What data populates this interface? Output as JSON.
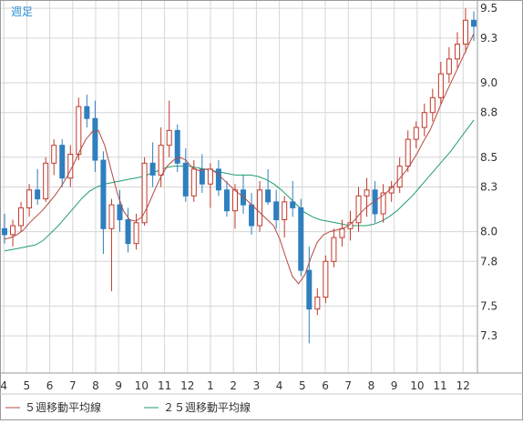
{
  "period_label": "週足",
  "chart_data": {
    "type": "candlestick",
    "ylim": [
      7.05,
      9.55
    ],
    "grid": true,
    "y_ticks": [
      7.3,
      7.5,
      7.8,
      8.0,
      8.3,
      8.5,
      8.8,
      9.0,
      9.3,
      9.5
    ],
    "y_tick_labels": [
      "7.3",
      "7.5",
      "7.8",
      "8.0",
      "8.3",
      "8.5",
      "8.8",
      "9.0",
      "9.3",
      "9.5"
    ],
    "x_tick_labels": [
      "4",
      "5",
      "6",
      "7",
      "8",
      "9",
      "10",
      "11",
      "12",
      "1",
      "2",
      "3",
      "4",
      "5",
      "6",
      "7",
      "8",
      "9",
      "10",
      "11",
      "12"
    ],
    "x_tick_index": [
      1,
      9,
      17,
      25,
      33,
      41,
      49,
      57,
      65,
      73,
      81,
      89,
      97,
      105,
      113,
      121,
      129,
      137,
      145,
      153,
      161
    ],
    "up_color": "#c0392b",
    "down_color": "#2f7fbf",
    "series": [
      {
        "name": "５週移動平均線",
        "color": "#b5483f",
        "values": [
          7.95,
          7.96,
          7.98,
          8.01,
          8.06,
          8.1,
          8.14,
          8.19,
          8.24,
          8.3,
          8.37,
          8.45,
          8.54,
          8.62,
          8.67,
          8.68,
          8.58,
          8.42,
          8.26,
          8.14,
          8.08,
          8.07,
          8.1,
          8.18,
          8.28,
          8.37,
          8.44,
          8.48,
          8.5,
          8.48,
          8.43,
          8.41,
          8.42,
          8.42,
          8.39,
          8.35,
          8.31,
          8.27,
          8.24,
          8.2,
          8.16,
          8.12,
          8.08,
          8.04,
          7.95,
          7.82,
          7.7,
          7.65,
          7.71,
          7.83,
          7.93,
          7.98,
          8.0,
          8.01,
          8.02,
          8.04,
          8.08,
          8.13,
          8.17,
          8.2,
          8.23,
          8.26,
          8.3,
          8.35,
          8.4,
          8.46,
          8.53,
          8.61,
          8.68,
          8.78,
          8.88,
          8.97,
          9.06,
          9.15,
          9.24,
          9.33
        ]
      },
      {
        "name": "２５週移動平均線",
        "color": "#1f9e6e",
        "values": [
          7.87,
          7.88,
          7.89,
          7.9,
          7.91,
          7.94,
          7.99,
          8.04,
          8.1,
          8.16,
          8.22,
          8.27,
          8.3,
          8.32,
          8.33,
          8.34,
          8.35,
          8.36,
          8.37,
          8.39,
          8.41,
          8.43,
          8.44,
          8.44,
          8.44,
          8.43,
          8.42,
          8.41,
          8.4,
          8.39,
          8.38,
          8.38,
          8.38,
          8.37,
          8.35,
          8.32,
          8.28,
          8.23,
          8.18,
          8.13,
          8.1,
          8.08,
          8.07,
          8.06,
          8.05,
          8.04,
          8.04,
          8.04,
          8.05,
          8.07,
          8.1,
          8.14,
          8.19,
          8.24,
          8.3,
          8.36,
          8.42,
          8.48,
          8.54,
          8.61,
          8.68,
          8.75
        ]
      },
      {
        "name": "candles",
        "values": [
          [
            8.02,
            8.12,
            7.92,
            7.98
          ],
          [
            7.98,
            8.08,
            7.9,
            8.04
          ],
          [
            8.04,
            8.2,
            8.0,
            8.16
          ],
          [
            8.16,
            8.32,
            8.1,
            8.28
          ],
          [
            8.28,
            8.42,
            8.18,
            8.22
          ],
          [
            8.22,
            8.5,
            8.2,
            8.46
          ],
          [
            8.46,
            8.62,
            8.38,
            8.58
          ],
          [
            8.58,
            8.62,
            8.3,
            8.36
          ],
          [
            8.36,
            8.58,
            8.3,
            8.52
          ],
          [
            8.52,
            8.9,
            8.48,
            8.84
          ],
          [
            8.84,
            8.92,
            8.7,
            8.76
          ],
          [
            8.76,
            8.88,
            8.4,
            8.48
          ],
          [
            8.48,
            8.54,
            7.85,
            8.02
          ],
          [
            8.02,
            8.22,
            7.6,
            8.18
          ],
          [
            8.18,
            8.28,
            8.0,
            8.08
          ],
          [
            8.08,
            8.16,
            7.86,
            7.92
          ],
          [
            7.92,
            8.12,
            7.88,
            8.06
          ],
          [
            8.06,
            8.5,
            8.04,
            8.46
          ],
          [
            8.46,
            8.6,
            8.3,
            8.38
          ],
          [
            8.38,
            8.7,
            8.3,
            8.58
          ],
          [
            8.58,
            8.88,
            8.5,
            8.68
          ],
          [
            8.68,
            8.72,
            8.4,
            8.46
          ],
          [
            8.46,
            8.56,
            8.2,
            8.24
          ],
          [
            8.24,
            8.48,
            8.2,
            8.42
          ],
          [
            8.42,
            8.52,
            8.26,
            8.32
          ],
          [
            8.32,
            8.46,
            8.16,
            8.42
          ],
          [
            8.42,
            8.48,
            8.24,
            8.28
          ],
          [
            8.28,
            8.34,
            8.1,
            8.14
          ],
          [
            8.14,
            8.32,
            8.02,
            8.28
          ],
          [
            8.28,
            8.38,
            8.12,
            8.18
          ],
          [
            8.18,
            8.26,
            7.98,
            8.04
          ],
          [
            8.04,
            8.34,
            8.0,
            8.28
          ],
          [
            8.28,
            8.42,
            8.18,
            8.2
          ],
          [
            8.2,
            8.28,
            8.02,
            8.08
          ],
          [
            8.08,
            8.24,
            7.96,
            8.2
          ],
          [
            8.2,
            8.34,
            8.1,
            8.16
          ],
          [
            8.16,
            8.22,
            7.7,
            7.74
          ],
          [
            7.74,
            7.9,
            7.25,
            7.48
          ],
          [
            7.48,
            7.62,
            7.44,
            7.56
          ],
          [
            7.56,
            7.84,
            7.52,
            7.8
          ],
          [
            7.8,
            8.02,
            7.76,
            7.96
          ],
          [
            7.96,
            8.08,
            7.9,
            8.02
          ],
          [
            8.02,
            8.14,
            7.94,
            8.06
          ],
          [
            8.06,
            8.3,
            8.0,
            8.24
          ],
          [
            8.24,
            8.36,
            8.1,
            8.28
          ],
          [
            8.28,
            8.34,
            8.06,
            8.12
          ],
          [
            8.12,
            8.32,
            8.06,
            8.26
          ],
          [
            8.26,
            8.34,
            8.2,
            8.3
          ],
          [
            8.3,
            8.5,
            8.26,
            8.44
          ],
          [
            8.44,
            8.68,
            8.4,
            8.62
          ],
          [
            8.62,
            8.74,
            8.56,
            8.7
          ],
          [
            8.7,
            8.86,
            8.64,
            8.8
          ],
          [
            8.8,
            8.96,
            8.74,
            8.9
          ],
          [
            8.9,
            9.14,
            8.86,
            9.06
          ],
          [
            9.06,
            9.24,
            9.0,
            9.16
          ],
          [
            9.16,
            9.34,
            9.1,
            9.26
          ],
          [
            9.26,
            9.5,
            9.2,
            9.42
          ],
          [
            9.42,
            9.48,
            9.28,
            9.38
          ]
        ]
      }
    ]
  },
  "legend": {
    "ma5_label": "５週移動平均線",
    "ma25_label": "２５週移動平均線"
  }
}
